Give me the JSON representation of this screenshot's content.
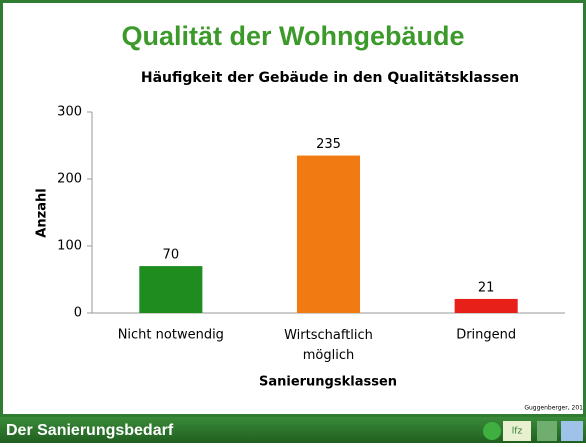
{
  "slide_title": "Qualität der Wohngebäude",
  "footer": "Der Sanierungsbedarf",
  "source": "Guggenberger, 201",
  "logo_text": "lfz",
  "chart_data": {
    "type": "bar",
    "title": "Häufigkeit der Gebäude in den Qualitätsklassen",
    "x_label": "Sanierungsklassen",
    "y_label": "Anzahl",
    "categories": [
      "Nicht notwendig",
      "Wirtschaftlich möglich",
      "Dringend"
    ],
    "values": [
      70,
      235,
      21
    ],
    "colors": [
      "#1e8c1e",
      "#f27a12",
      "#e8201a"
    ],
    "ylim": [
      0,
      300
    ],
    "yticks": [
      0,
      100,
      200,
      300
    ],
    "grid": false
  }
}
